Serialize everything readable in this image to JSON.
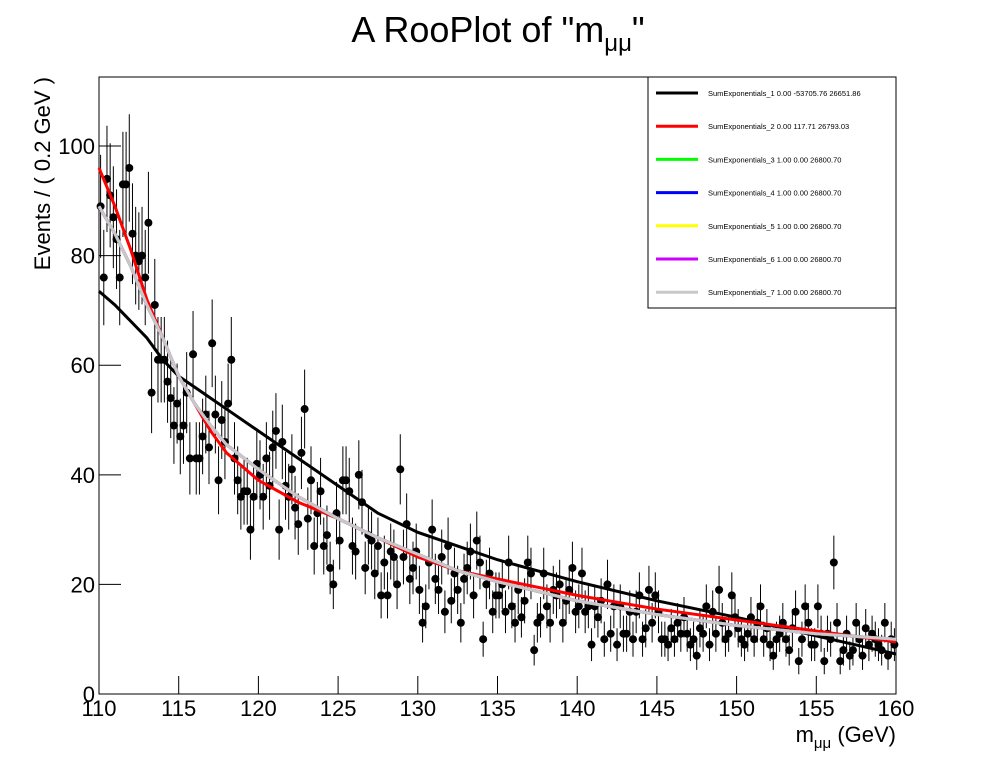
{
  "chart_data": {
    "type": "scatter",
    "title": {
      "text": "A RooPlot of \"m",
      "sub": "μμ",
      "end": "\""
    },
    "x_label": {
      "text": "m",
      "sub": "μμ",
      "end": " (GeV)"
    },
    "y_label": "Events / ( 0.2 GeV )",
    "xlim": [
      110,
      160
    ],
    "ylim": [
      0,
      112.6
    ],
    "xticks": [
      110,
      115,
      120,
      125,
      130,
      135,
      140,
      145,
      150,
      155,
      160
    ],
    "yticks": [
      0,
      20,
      40,
      60,
      80,
      100
    ],
    "legend": "upper right",
    "point_color": "#000000",
    "x": [
      110.1,
      110.3,
      110.5,
      110.7,
      110.9,
      111.1,
      111.3,
      111.5,
      111.7,
      111.9,
      112.1,
      112.3,
      112.5,
      112.7,
      112.9,
      113.1,
      113.3,
      113.5,
      113.7,
      113.9,
      114.1,
      114.3,
      114.5,
      114.7,
      114.9,
      115.1,
      115.3,
      115.5,
      115.7,
      115.9,
      116.1,
      116.3,
      116.5,
      116.7,
      116.9,
      117.1,
      117.3,
      117.5,
      117.7,
      117.9,
      118.1,
      118.3,
      118.5,
      118.7,
      118.9,
      119.1,
      119.3,
      119.5,
      119.7,
      119.9,
      120.1,
      120.3,
      120.5,
      120.7,
      120.9,
      121.1,
      121.3,
      121.5,
      121.7,
      121.9,
      122.1,
      122.3,
      122.5,
      122.7,
      122.9,
      123.1,
      123.3,
      123.5,
      123.7,
      123.9,
      124.1,
      124.3,
      124.5,
      124.7,
      124.9,
      125.1,
      125.3,
      125.5,
      125.7,
      125.9,
      126.1,
      126.3,
      126.5,
      126.7,
      126.9,
      127.1,
      127.3,
      127.5,
      127.7,
      127.9,
      128.1,
      128.3,
      128.5,
      128.7,
      128.9,
      129.1,
      129.3,
      129.5,
      129.7,
      129.9,
      130.1,
      130.3,
      130.5,
      130.7,
      130.9,
      131.1,
      131.3,
      131.5,
      131.7,
      131.9,
      132.1,
      132.3,
      132.5,
      132.7,
      132.9,
      133.1,
      133.3,
      133.5,
      133.7,
      133.9,
      134.1,
      134.3,
      134.5,
      134.7,
      134.9,
      135.1,
      135.3,
      135.5,
      135.7,
      135.9,
      136.1,
      136.3,
      136.5,
      136.7,
      136.9,
      137.1,
      137.3,
      137.5,
      137.7,
      137.9,
      138.1,
      138.3,
      138.5,
      138.7,
      138.9,
      139.1,
      139.3,
      139.5,
      139.7,
      139.9,
      140.1,
      140.3,
      140.5,
      140.7,
      140.9,
      141.1,
      141.3,
      141.5,
      141.7,
      141.9,
      142.1,
      142.3,
      142.5,
      142.7,
      142.9,
      143.1,
      143.3,
      143.5,
      143.7,
      143.9,
      144.1,
      144.3,
      144.5,
      144.7,
      144.9,
      145.1,
      145.3,
      145.5,
      145.7,
      145.9,
      146.1,
      146.3,
      146.5,
      146.7,
      146.9,
      147.1,
      147.3,
      147.5,
      147.7,
      147.9,
      148.1,
      148.3,
      148.5,
      148.7,
      148.9,
      149.1,
      149.3,
      149.5,
      149.7,
      149.9,
      150.1,
      150.3,
      150.5,
      150.7,
      150.9,
      151.1,
      151.3,
      151.5,
      151.7,
      151.9,
      152.1,
      152.3,
      152.5,
      152.7,
      152.9,
      153.1,
      153.3,
      153.5,
      153.7,
      153.9,
      154.1,
      154.3,
      154.5,
      154.7,
      154.9,
      155.1,
      155.3,
      155.5,
      155.7,
      155.9,
      156.1,
      156.3,
      156.5,
      156.7,
      156.9,
      157.1,
      157.3,
      157.5,
      157.7,
      157.9,
      158.1,
      158.3,
      158.5,
      158.7,
      158.9,
      159.1,
      159.3,
      159.5,
      159.7,
      159.9
    ],
    "values": [
      89,
      76,
      94,
      91,
      87,
      83,
      76,
      93,
      93,
      96,
      84,
      80,
      79,
      80,
      76,
      86,
      55,
      71,
      61,
      61,
      61,
      57,
      54,
      49,
      53,
      47,
      49,
      55,
      43,
      62,
      43,
      43,
      47,
      51,
      45,
      64,
      51,
      39,
      50,
      46,
      53,
      61,
      43,
      39,
      36,
      37,
      37,
      30,
      36,
      42,
      40,
      36,
      43,
      38,
      45,
      48,
      30,
      46,
      38,
      36,
      41,
      34,
      31,
      44,
      52,
      32,
      39,
      27,
      33,
      37,
      27,
      29,
      23,
      20,
      33,
      28,
      39,
      39,
      37,
      27,
      26,
      40,
      35,
      23,
      29,
      28,
      22,
      27,
      18,
      24,
      18,
      26,
      25,
      20,
      41,
      25,
      31,
      21,
      23,
      26,
      19,
      13,
      16,
      24,
      30,
      21,
      19,
      25,
      15,
      27,
      17,
      22,
      19,
      13,
      21,
      23,
      26,
      18,
      28,
      24,
      10,
      20,
      22,
      15,
      18,
      18,
      20,
      15,
      24,
      16,
      13,
      19,
      14,
      17,
      24,
      22,
      8,
      13,
      14,
      22,
      16,
      13,
      19,
      18,
      20,
      13,
      17,
      19,
      23,
      15,
      16,
      22,
      15,
      16,
      9,
      16,
      14,
      17,
      10,
      20,
      11,
      16,
      9,
      16,
      11,
      11,
      15,
      10,
      15,
      18,
      10,
      12,
      19,
      13,
      18,
      15,
      10,
      10,
      9,
      12,
      10,
      13,
      11,
      14,
      11,
      9,
      10,
      7,
      12,
      11,
      16,
      9,
      15,
      11,
      19,
      13,
      10,
      11,
      18,
      14,
      12,
      10,
      9,
      11,
      14,
      10,
      13,
      16,
      10,
      12,
      9,
      7,
      10,
      11,
      13,
      10,
      8,
      12,
      15,
      6,
      10,
      16,
      13,
      9,
      9,
      16,
      11,
      6,
      11,
      10,
      24,
      13,
      6,
      8,
      11,
      7,
      8,
      13,
      10,
      7,
      12,
      9,
      11,
      10,
      9,
      8,
      13,
      7,
      10,
      9
    ],
    "errors": [
      9.4,
      8.7,
      9.7,
      9.5,
      9.3,
      9.1,
      8.7,
      9.6,
      9.6,
      9.8,
      9.2,
      8.9,
      8.9,
      8.9,
      8.7,
      9.3,
      7.4,
      8.4,
      7.8,
      7.8,
      7.8,
      7.5,
      7.3,
      7,
      7.3,
      6.9,
      7,
      7.4,
      6.6,
      7.9,
      6.6,
      6.6,
      6.9,
      7.1,
      6.7,
      8,
      7.1,
      6.2,
      7.1,
      6.8,
      7.3,
      7.8,
      6.6,
      6.2,
      6,
      6.1,
      6.1,
      5.5,
      6,
      6.5,
      6.3,
      6,
      6.6,
      6.2,
      6.7,
      6.9,
      5.5,
      6.8,
      6.2,
      6,
      6.4,
      5.8,
      5.6,
      6.6,
      7.2,
      5.7,
      6.2,
      5.2,
      5.7,
      6.1,
      5.2,
      5.4,
      4.8,
      4.5,
      5.7,
      5.3,
      6.2,
      6.2,
      6.1,
      5.2,
      5.1,
      6.3,
      5.9,
      4.8,
      5.4,
      5.3,
      4.7,
      5.2,
      4.2,
      4.9,
      4.2,
      5.1,
      5,
      4.5,
      6.4,
      5,
      5.6,
      4.6,
      4.8,
      5.1,
      4.4,
      3.6,
      4,
      4.9,
      5.5,
      4.6,
      4.4,
      5,
      3.9,
      5.2,
      4.1,
      4.7,
      4.4,
      3.6,
      4.6,
      4.8,
      5.1,
      4.2,
      5.3,
      4.9,
      3.2,
      4.5,
      4.7,
      3.9,
      4.2,
      4.2,
      4.5,
      3.9,
      4.9,
      4,
      3.6,
      4.4,
      3.7,
      4.1,
      4.9,
      4.7,
      2.8,
      3.6,
      3.7,
      4.7,
      4,
      3.6,
      4.4,
      4.2,
      4.5,
      3.6,
      4.1,
      4.4,
      4.8,
      3.9,
      4,
      4.7,
      3.9,
      4,
      3,
      4,
      3.7,
      4.1,
      3.2,
      4.5,
      3.3,
      4,
      3,
      4,
      3.3,
      3.3,
      3.9,
      3.2,
      3.9,
      4.2,
      3.2,
      3.5,
      4.4,
      3.6,
      4.2,
      3.9,
      3.2,
      3.2,
      3,
      3.5,
      3.2,
      3.6,
      3.3,
      3.7,
      3.3,
      3,
      3.2,
      2.6,
      3.5,
      3.3,
      4,
      3,
      3.9,
      3.3,
      4.4,
      3.6,
      3.2,
      3.3,
      4.2,
      3.7,
      3.5,
      3.2,
      3,
      3.3,
      3.7,
      3.2,
      3.6,
      4,
      3.2,
      3.5,
      3,
      2.6,
      3.2,
      3.3,
      3.6,
      3.2,
      2.8,
      3.5,
      3.9,
      2.4,
      3.2,
      4,
      3.6,
      3,
      3,
      4,
      3.3,
      2.4,
      3.3,
      3.2,
      4.9,
      3.6,
      2.4,
      2.8,
      3.3,
      2.6,
      2.8,
      3.6,
      3.2,
      2.6,
      3.5,
      3,
      3.3,
      3.2,
      3,
      2.8,
      3.6,
      2.6,
      3.2,
      3
    ],
    "curve_x": [
      110,
      111,
      112,
      113,
      114,
      115,
      116,
      117,
      118,
      120,
      122.5,
      125,
      127.5,
      130,
      132.5,
      135,
      140,
      145,
      150,
      155,
      160
    ],
    "series": [
      {
        "name": "SumExponentials_1  0.00 -53705.76 26651.86",
        "color": "#000000",
        "values": [
          73.5,
          71,
          68,
          65,
          61,
          58,
          56,
          54,
          52,
          48,
          43,
          38,
          33,
          29.5,
          27,
          24.5,
          20.5,
          17,
          14,
          10.6,
          7.3
        ]
      },
      {
        "name": "SumExponentials_2  0.00 117.71 26793.03",
        "color": "#ff0000",
        "values": [
          96,
          89,
          81,
          72,
          65,
          58,
          53,
          48,
          44,
          39,
          35,
          32,
          28.5,
          25,
          22.5,
          21,
          18,
          15.5,
          13.5,
          11.5,
          9.5
        ]
      },
      {
        "name": "SumExponentials_3  1.00 0.00 26800.70",
        "color": "#00ff00",
        "values": [
          89,
          84,
          78,
          71,
          65,
          58,
          53,
          49,
          45.5,
          41,
          36,
          32,
          28.5,
          25.5,
          22.5,
          20.5,
          17,
          14.5,
          12.5,
          11,
          10
        ]
      },
      {
        "name": "SumExponentials_4  1.00 0.00 26800.70",
        "color": "#0000ff",
        "values": [
          89,
          84,
          78,
          71,
          65,
          58,
          53,
          49,
          45.5,
          41,
          36,
          32,
          28.5,
          25.5,
          22.5,
          20.5,
          17,
          14.5,
          12.5,
          11,
          10
        ]
      },
      {
        "name": "SumExponentials_5  1.00 0.00 26800.70",
        "color": "#ffff00",
        "values": [
          89,
          84,
          78,
          71,
          65,
          58,
          53,
          49,
          45.5,
          41,
          36,
          32,
          28.5,
          25.5,
          22.5,
          20.5,
          17,
          14.5,
          12.5,
          11,
          10
        ]
      },
      {
        "name": "SumExponentials_6  1.00 0.00 26800.70",
        "color": "#cc00ff",
        "values": [
          89,
          84,
          78,
          71,
          65,
          58,
          53,
          49,
          45.5,
          41,
          36,
          32,
          28.5,
          25.5,
          22.5,
          20.5,
          17,
          14.5,
          12.5,
          11,
          10
        ]
      },
      {
        "name": "SumExponentials_7  1.00 0.00 26800.70",
        "color": "#c8c8c8",
        "values": [
          89,
          84,
          78,
          71,
          65,
          58,
          53,
          49,
          45.5,
          41,
          36,
          32,
          28.5,
          25.5,
          22.5,
          20.5,
          17,
          14.5,
          12.5,
          11,
          10
        ]
      }
    ]
  }
}
